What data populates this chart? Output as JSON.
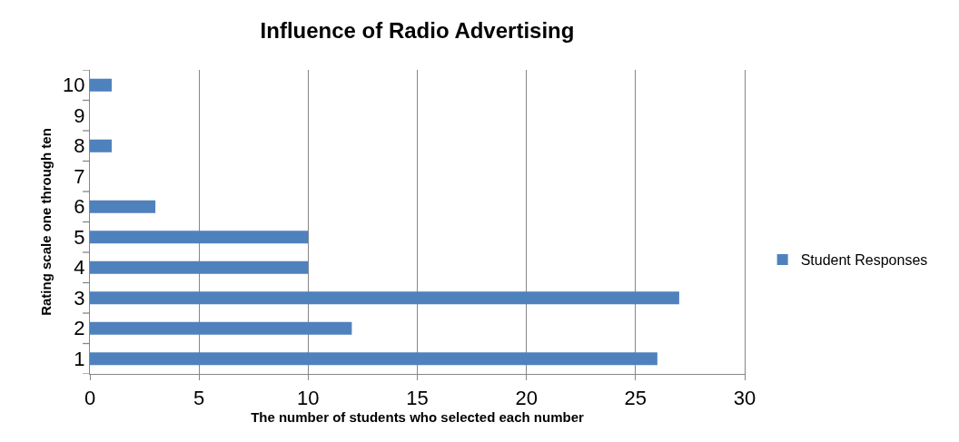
{
  "chart_data": {
    "type": "bar",
    "orientation": "horizontal",
    "title": "Influence of Radio Advertising",
    "xlabel": "The number of students who selected each number",
    "ylabel": "Rating scale one through ten",
    "categories": [
      "10",
      "9",
      "8",
      "7",
      "6",
      "5",
      "4",
      "3",
      "2",
      "1"
    ],
    "series": [
      {
        "name": "Student Responses",
        "color": "#4f81bd",
        "values": [
          1,
          0,
          1,
          0,
          3,
          10,
          10,
          27,
          12,
          26
        ]
      }
    ],
    "xlim": [
      0,
      30
    ],
    "xticks": [
      0,
      5,
      10,
      15,
      20,
      25,
      30
    ],
    "grid": "x",
    "legend": "right"
  }
}
